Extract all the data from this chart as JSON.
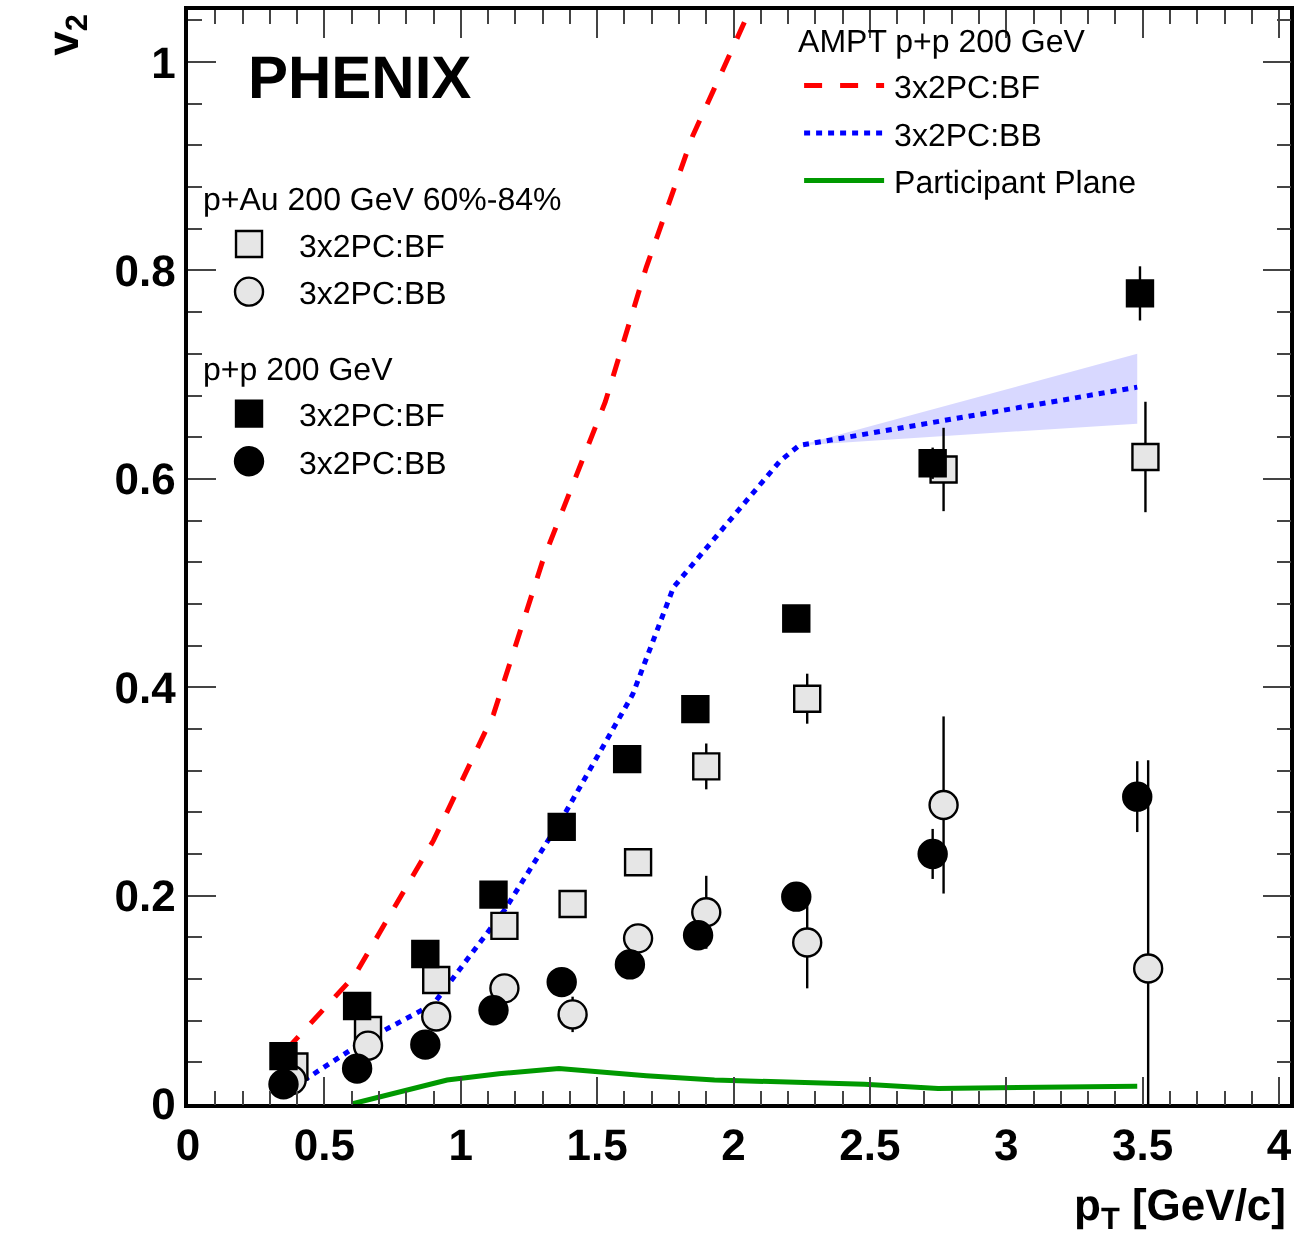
{
  "chart_data": {
    "type": "scatter",
    "xlabel": "p$_{T}$ [GeV/c]",
    "ylabel": "v$_{2}$",
    "annotations": [
      "PHENIX",
      "p+Au 200 GeV 60%-84%",
      "p+p 200 GeV",
      "AMPT p+p 200 GeV"
    ],
    "xlim": [
      0,
      4.04
    ],
    "ylim": [
      0,
      1.05
    ],
    "xticks": [
      0,
      0.5,
      1,
      1.5,
      2,
      2.5,
      3,
      3.5,
      4
    ],
    "yticks": [
      0,
      0.2,
      0.4,
      0.6,
      0.8,
      1
    ],
    "grid": false,
    "legend": "top left",
    "series": [
      {
        "name": "3x2PC:BF",
        "marker": "square",
        "color": "#e6e6e6",
        "x": [
          0.39,
          0.66,
          0.91,
          1.16,
          1.41,
          1.65,
          1.9,
          2.27,
          2.77,
          3.51
        ],
        "values": [
          0.036,
          0.071,
          0.119,
          0.171,
          0.192,
          0.232,
          0.324,
          0.389,
          0.609,
          0.621
        ],
        "errors": [
          null,
          null,
          null,
          null,
          0.01,
          0.01,
          0.022,
          0.024,
          0.04,
          0.053
        ]
      },
      {
        "name": "3x2PC:BB",
        "marker": "circle",
        "color": "#e6e6e6",
        "x": [
          0.38,
          0.66,
          0.91,
          1.16,
          1.41,
          1.65,
          1.9,
          2.27,
          2.77,
          3.52
        ],
        "values": [
          0.023,
          0.056,
          0.084,
          0.111,
          0.086,
          0.159,
          0.184,
          0.155,
          0.287,
          0.13
        ],
        "errors": [
          null,
          null,
          null,
          null,
          0.017,
          0.01,
          0.035,
          0.044,
          0.085,
          [
            0,
            0.33
          ]
        ]
      },
      {
        "name": "3x2PC:BF",
        "marker": "square",
        "color": "#000000",
        "x": [
          0.35,
          0.62,
          0.87,
          1.12,
          1.37,
          1.61,
          1.86,
          2.23,
          2.73,
          3.49
        ],
        "values": [
          0.046,
          0.094,
          0.144,
          0.201,
          0.266,
          0.331,
          0.379,
          0.466,
          0.615,
          0.778
        ],
        "errors": [
          null,
          null,
          null,
          null,
          null,
          null,
          null,
          null,
          0.015,
          0.026
        ]
      },
      {
        "name": "3x2PC:BB",
        "marker": "circle",
        "color": "#000000",
        "x": [
          0.35,
          0.62,
          0.87,
          1.12,
          1.37,
          1.62,
          1.87,
          2.23,
          2.73,
          3.48
        ],
        "values": [
          0.019,
          0.034,
          0.057,
          0.09,
          0.117,
          0.134,
          0.162,
          0.199,
          0.24,
          0.295
        ],
        "errors": [
          null,
          null,
          null,
          null,
          null,
          null,
          null,
          null,
          0.024,
          0.034
        ]
      },
      {
        "name": "3x2PC:BF",
        "type": "line",
        "line_style": "dashed",
        "color": "#ff0000",
        "x": [
          0.36,
          0.61,
          0.9,
          1.12,
          1.3,
          1.53,
          1.68,
          1.85,
          1.93,
          2.06
        ],
        "values": [
          0.052,
          0.123,
          0.253,
          0.374,
          0.521,
          0.674,
          0.803,
          0.929,
          0.975,
          1.05
        ]
      },
      {
        "name": "3x2PC:BB",
        "type": "line",
        "line_style": "dotted",
        "color": "#0000ff",
        "x": [
          0.35,
          0.65,
          0.9,
          1.16,
          1.38,
          1.63,
          1.78,
          1.86,
          2.17,
          2.24,
          3.48
        ],
        "values": [
          0.01,
          0.061,
          0.096,
          0.186,
          0.278,
          0.393,
          0.496,
          0.521,
          0.617,
          0.632,
          0.688
        ],
        "lower": [
          null,
          null,
          null,
          null,
          null,
          null,
          null,
          null,
          null,
          0.632,
          0.653
        ],
        "upper": [
          null,
          null,
          null,
          null,
          null,
          null,
          null,
          null,
          null,
          0.632,
          0.72
        ]
      },
      {
        "name": "Participant Plane",
        "type": "line",
        "line_style": "solid",
        "color": "#009900",
        "x": [
          0.6,
          0.95,
          1.14,
          1.36,
          1.68,
          1.93,
          2.48,
          2.75,
          3.48
        ],
        "values": [
          0,
          0.023,
          0.029,
          0.034,
          0.027,
          0.023,
          0.019,
          0.015,
          0.017
        ]
      }
    ]
  }
}
